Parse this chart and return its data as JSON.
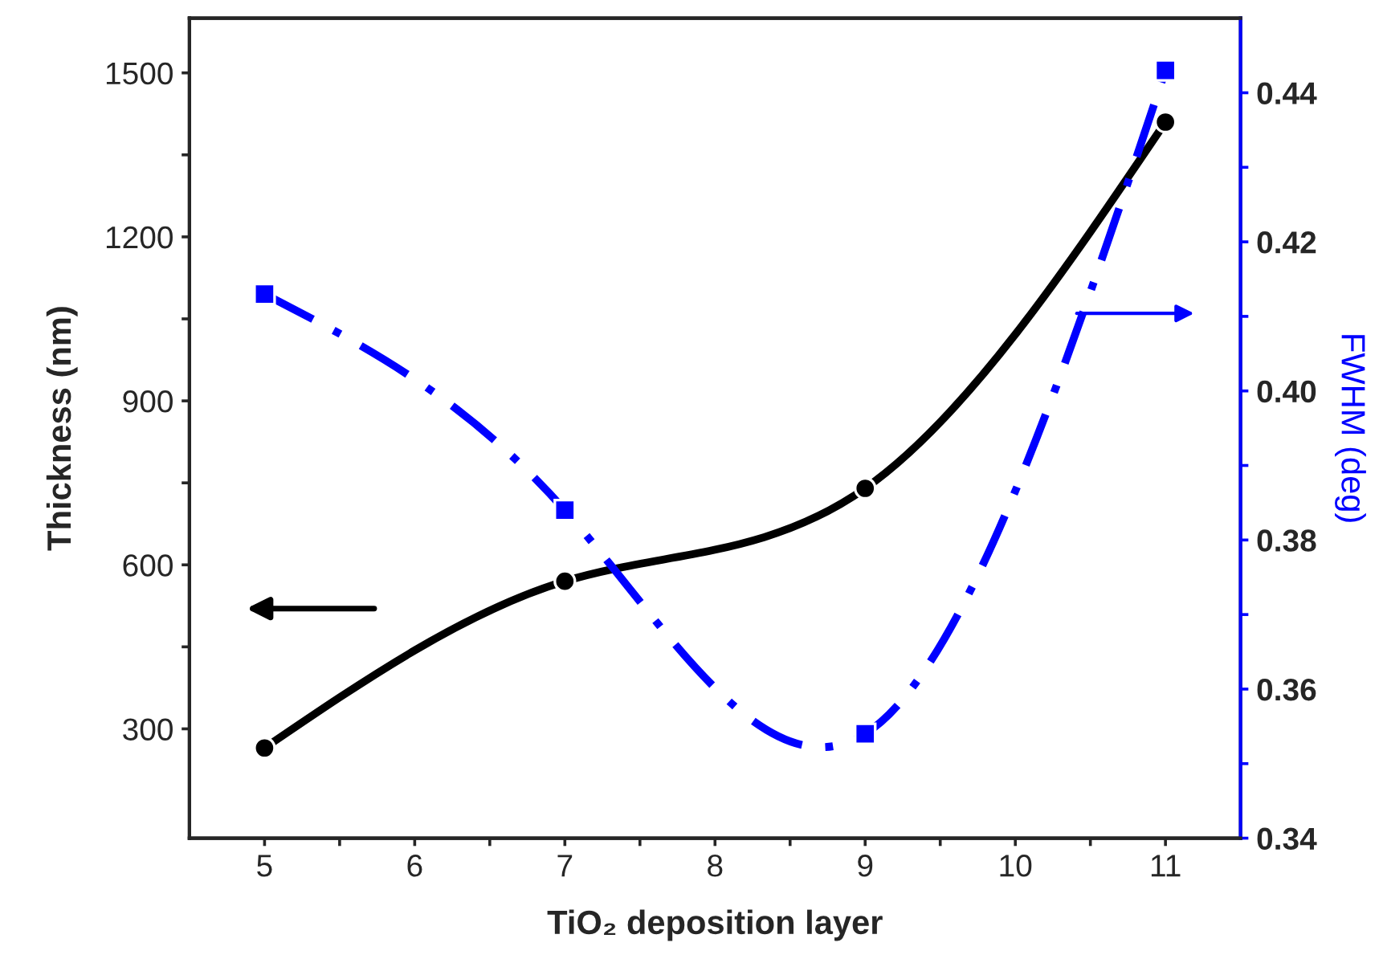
{
  "chart_data": {
    "type": "line",
    "xlabel": "TiO₂ deposition layer",
    "ylabel": "Thickness (nm)",
    "y2label": "FWHM (deg)",
    "x": [
      5,
      7,
      9,
      11
    ],
    "series": [
      {
        "color": "#000000",
        "values": [
          265,
          570,
          740,
          1410
        ],
        "marker": "circle",
        "line_style": "solid"
      },
      {
        "color": "#0000ff",
        "values": [
          0.413,
          0.384,
          0.354,
          0.443
        ],
        "marker": "square",
        "line_style": "dashdot",
        "axis": "y2"
      }
    ],
    "xlim": [
      4.5,
      11.5
    ],
    "xticks": [
      5,
      6,
      7,
      8,
      9,
      10,
      11
    ],
    "ylim": [
      100,
      1600
    ],
    "yticks": [
      300,
      600,
      900,
      1200,
      1500
    ],
    "y2lim": [
      0.34,
      0.45
    ],
    "y2ticks": [
      {
        "value": 0.34,
        "label": "0.34"
      },
      {
        "value": 0.36,
        "label": "0.36"
      },
      {
        "value": 0.38,
        "label": "0.38"
      },
      {
        "value": 0.4,
        "label": "0.40"
      },
      {
        "value": 0.42,
        "label": "0.42"
      },
      {
        "value": 0.44,
        "label": "0.44"
      }
    ],
    "grid": false,
    "legend": false
  }
}
